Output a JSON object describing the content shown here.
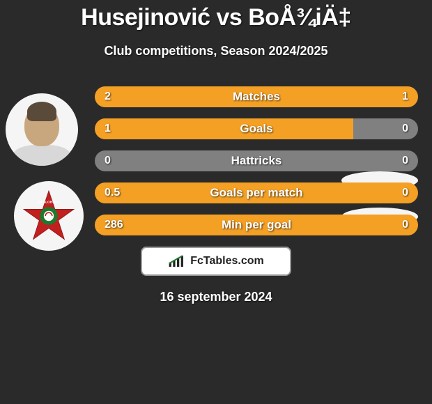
{
  "title": "Husejinović vs BoÅ¾iÄ‡",
  "subtitle": "Club competitions, Season 2024/2025",
  "date": "16 september 2024",
  "footer_brand": "FcTables.com",
  "colors": {
    "bg": "#2a2a2a",
    "bar_highlight": "#f4a025",
    "bar_neutral": "#808080",
    "text": "#ffffff",
    "avatar_bg": "#f5f5f5",
    "badge_red": "#c21f1f",
    "badge_green": "#1e7a2e",
    "footer_border": "#999999"
  },
  "stats": [
    {
      "label": "Matches",
      "left_val": "2",
      "right_val": "1",
      "left_pct": 67,
      "right_pct": 33
    },
    {
      "label": "Goals",
      "left_val": "1",
      "right_val": "0",
      "left_pct": 80,
      "right_pct": 0
    },
    {
      "label": "Hattricks",
      "left_val": "0",
      "right_val": "0",
      "left_pct": 0,
      "right_pct": 0
    },
    {
      "label": "Goals per match",
      "left_val": "0.5",
      "right_val": "0",
      "left_pct": 100,
      "right_pct": 0
    },
    {
      "label": "Min per goal",
      "left_val": "286",
      "right_val": "0",
      "left_pct": 100,
      "right_pct": 0
    }
  ]
}
